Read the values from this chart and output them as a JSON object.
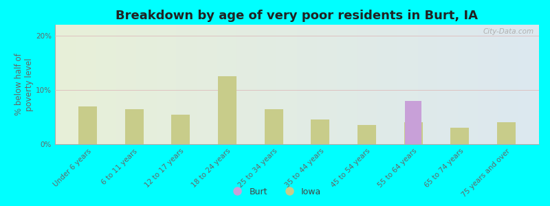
{
  "title": "Breakdown by age of very poor residents in Burt, IA",
  "ylabel": "% below half of\npoverty level",
  "background_color": "#00ffff",
  "plot_bg_top": "#e8f0d8",
  "plot_bg_bottom": "#dce8f0",
  "categories": [
    "Under 6 years",
    "6 to 11 years",
    "12 to 17 years",
    "18 to 24 years",
    "25 to 34 years",
    "35 to 44 years",
    "45 to 54 years",
    "55 to 64 years",
    "65 to 74 years",
    "75 years and over"
  ],
  "iowa_values": [
    7.0,
    6.5,
    5.5,
    12.5,
    6.5,
    4.5,
    3.5,
    4.0,
    3.0,
    4.0
  ],
  "burt_values": [
    0,
    0,
    0,
    0,
    0,
    0,
    0,
    8.0,
    0,
    0
  ],
  "iowa_color": "#c8cc8a",
  "burt_color": "#c8a0d8",
  "ylim": [
    0,
    22
  ],
  "yticks": [
    0,
    10,
    20
  ],
  "ytick_labels": [
    "0%",
    "10%",
    "20%"
  ],
  "bar_width": 0.4,
  "title_fontsize": 13,
  "axis_label_fontsize": 8.5,
  "tick_fontsize": 7.5,
  "legend_labels": [
    "Burt",
    "Iowa"
  ],
  "watermark": "City-Data.com"
}
